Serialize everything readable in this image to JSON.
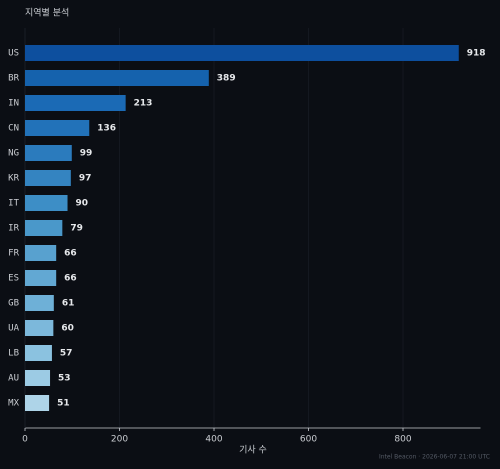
{
  "chart_data": {
    "type": "barh",
    "title": "지역별 분석",
    "x_label": "기사 수",
    "footer": "Intel Beacon · 2026-06-07 21:00 UTC",
    "categories": [
      "US",
      "BR",
      "IN",
      "CN",
      "NG",
      "KR",
      "IT",
      "IR",
      "FR",
      "ES",
      "GB",
      "UA",
      "LB",
      "AU",
      "MX"
    ],
    "values": [
      918,
      389,
      213,
      136,
      99,
      97,
      90,
      79,
      66,
      66,
      61,
      60,
      57,
      53,
      51
    ],
    "colors": [
      "#0d4f9e",
      "#1562ad",
      "#1b6ab5",
      "#2272b9",
      "#2b7bbd",
      "#3484c1",
      "#3d8ec6",
      "#4a98ca",
      "#58a1cf",
      "#62a8d3",
      "#6eb0d7",
      "#7cb8db",
      "#8bc2e0",
      "#9ccbe4",
      "#aed4e8"
    ],
    "xlim": [
      0,
      964
    ],
    "xticks": [
      0,
      200,
      400,
      600,
      800
    ],
    "grid": true
  }
}
